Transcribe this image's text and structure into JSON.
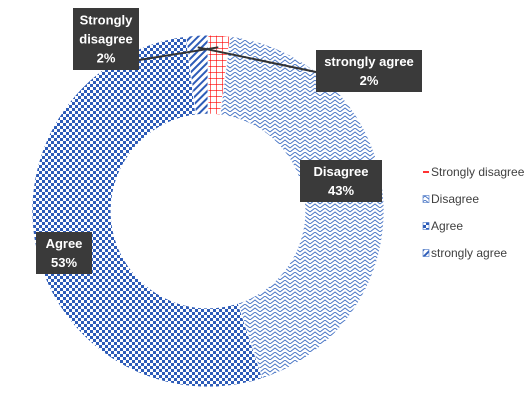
{
  "chart_data": {
    "type": "pie",
    "variant": "doughnut",
    "title": "",
    "categories": [
      "Strongly disagree",
      "Disagree",
      "Agree",
      "strongly agree"
    ],
    "values": [
      2,
      43,
      53,
      2
    ],
    "data_labels": [
      {
        "category": "Strongly disagree",
        "lines": [
          "Strongly",
          "disagree",
          "2%"
        ]
      },
      {
        "category": "strongly agree",
        "lines": [
          "strongly agree",
          "2%"
        ]
      },
      {
        "category": "Disagree",
        "lines": [
          "Disagree",
          "43%"
        ]
      },
      {
        "category": "Agree",
        "lines": [
          "Agree",
          "53%"
        ]
      }
    ],
    "legend": {
      "position": "right",
      "entries": [
        "Strongly disagree",
        "Disagree",
        "Agree",
        "strongly agree"
      ]
    },
    "colors": {
      "Strongly disagree": "#ff0000",
      "Disagree": "#4472c4",
      "Agree": "#2e5cb8",
      "strongly agree": "#2e5cb8",
      "label_box": "#3a3a3a"
    }
  }
}
